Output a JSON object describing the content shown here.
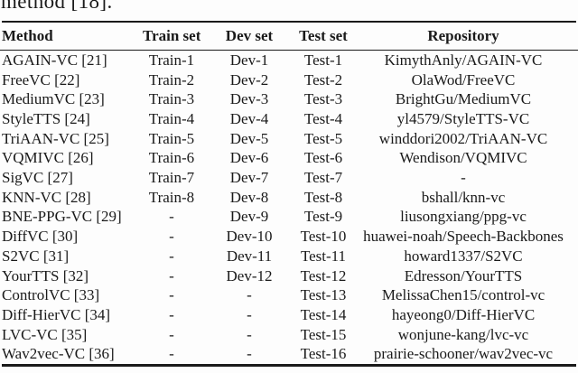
{
  "document": {
    "top_partial_text": "method [18]."
  },
  "table": {
    "columns": [
      "Method",
      "Train set",
      "Dev set",
      "Test set",
      "Repository"
    ],
    "rows": [
      [
        "AGAIN-VC [21]",
        "Train-1",
        "Dev-1",
        "Test-1",
        "KimythAnly/AGAIN-VC"
      ],
      [
        "FreeVC [22]",
        "Train-2",
        "Dev-2",
        "Test-2",
        "OlaWod/FreeVC"
      ],
      [
        "MediumVC [23]",
        "Train-3",
        "Dev-3",
        "Test-3",
        "BrightGu/MediumVC"
      ],
      [
        "StyleTTS [24]",
        "Train-4",
        "Dev-4",
        "Test-4",
        "yl4579/StyleTTS-VC"
      ],
      [
        "TriAAN-VC [25]",
        "Train-5",
        "Dev-5",
        "Test-5",
        "winddori2002/TriAAN-VC"
      ],
      [
        "VQMIVC [26]",
        "Train-6",
        "Dev-6",
        "Test-6",
        "Wendison/VQMIVC"
      ],
      [
        "SigVC [27]",
        "Train-7",
        "Dev-7",
        "Test-7",
        "-"
      ],
      [
        "KNN-VC [28]",
        "Train-8",
        "Dev-8",
        "Test-8",
        "bshall/knn-vc"
      ],
      [
        "BNE-PPG-VC [29]",
        "-",
        "Dev-9",
        "Test-9",
        "liusongxiang/ppg-vc"
      ],
      [
        "DiffVC [30]",
        "-",
        "Dev-10",
        "Test-10",
        "huawei-noah/Speech-Backbones"
      ],
      [
        "S2VC [31]",
        "-",
        "Dev-11",
        "Test-11",
        "howard1337/S2VC"
      ],
      [
        "YourTTS [32]",
        "-",
        "Dev-12",
        "Test-12",
        "Edresson/YourTTS"
      ],
      [
        "ControlVC [33]",
        "-",
        "-",
        "Test-13",
        "MelissaChen15/control-vc"
      ],
      [
        "Diff-HierVC [34]",
        "-",
        "-",
        "Test-14",
        "hayeong0/Diff-HierVC"
      ],
      [
        "LVC-VC [35]",
        "-",
        "-",
        "Test-15",
        "wonjune-kang/lvc-vc"
      ],
      [
        "Wav2vec-VC [36]",
        "-",
        "-",
        "Test-16",
        "prairie-schooner/wav2vec-vc"
      ]
    ]
  },
  "colors": {
    "text": "#1a1a1a",
    "background": "#fdfdfd",
    "rule": "#1a1a1a"
  }
}
